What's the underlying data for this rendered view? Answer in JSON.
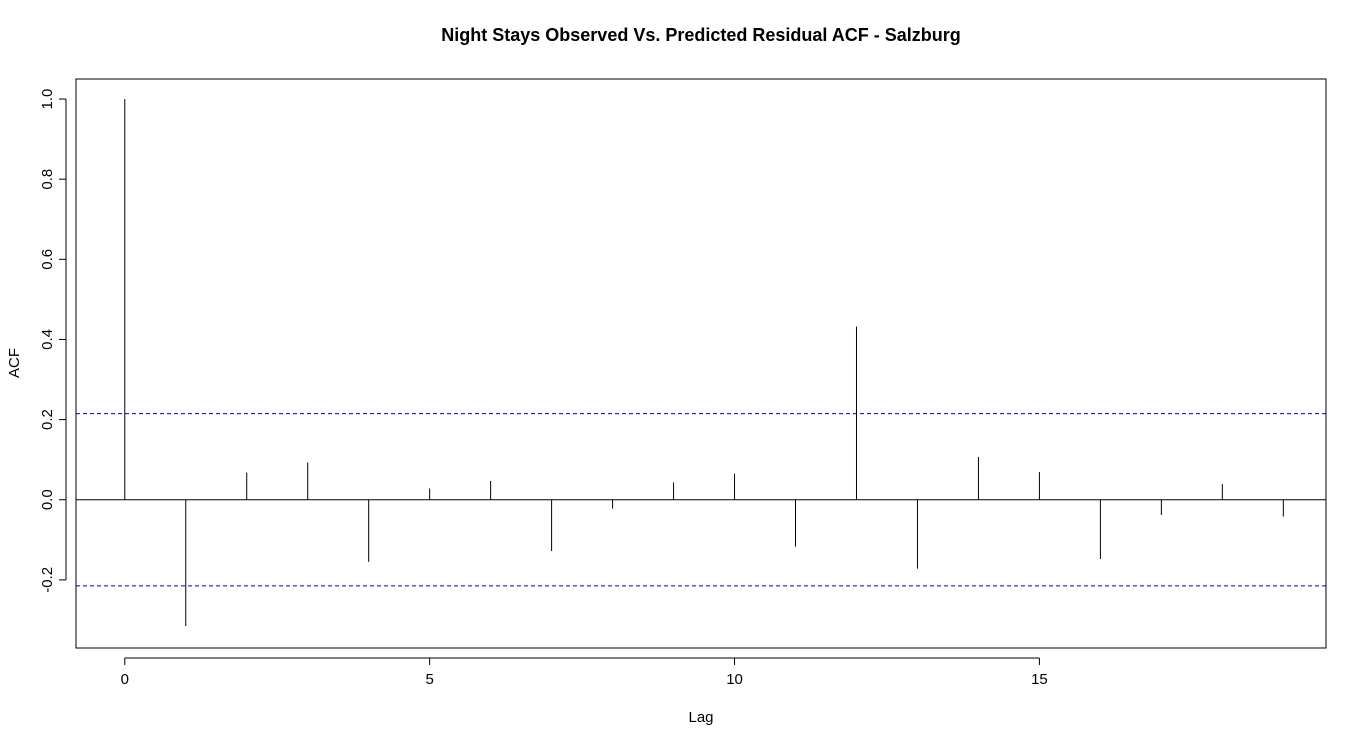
{
  "chart_data": {
    "type": "bar",
    "title": "Night Stays Observed Vs. Predicted Residual ACF - Salzburg",
    "xlabel": "Lag",
    "ylabel": "ACF",
    "x_ticks": [
      0,
      5,
      10,
      15
    ],
    "x_tick_labels": [
      "0",
      "5",
      "10",
      "15"
    ],
    "y_ticks": [
      -0.2,
      0.0,
      0.2,
      0.4,
      0.6,
      0.8,
      1.0
    ],
    "y_tick_labels": [
      "-0.2",
      "0.0",
      "0.2",
      "0.4",
      "0.6",
      "0.8",
      "1.0"
    ],
    "xlim": [
      -0.8,
      19.7
    ],
    "ylim": [
      -0.37,
      1.05
    ],
    "lags": [
      0,
      1,
      2,
      3,
      4,
      5,
      6,
      7,
      8,
      9,
      10,
      11,
      12,
      13,
      14,
      15,
      16,
      17,
      18,
      19
    ],
    "acf": [
      1.0,
      -0.315,
      0.068,
      0.093,
      -0.155,
      0.028,
      0.047,
      -0.128,
      -0.022,
      0.043,
      0.065,
      -0.117,
      0.432,
      -0.172,
      0.107,
      0.069,
      -0.148,
      -0.038,
      0.039,
      -0.042
    ],
    "confidence_bounds": [
      0.215,
      -0.215
    ],
    "zero_line": 0,
    "colors": {
      "bars": "#000000",
      "zero_line": "#000000",
      "confidence_lines": "#0000cc",
      "frame": "#000000"
    },
    "grid": false
  }
}
